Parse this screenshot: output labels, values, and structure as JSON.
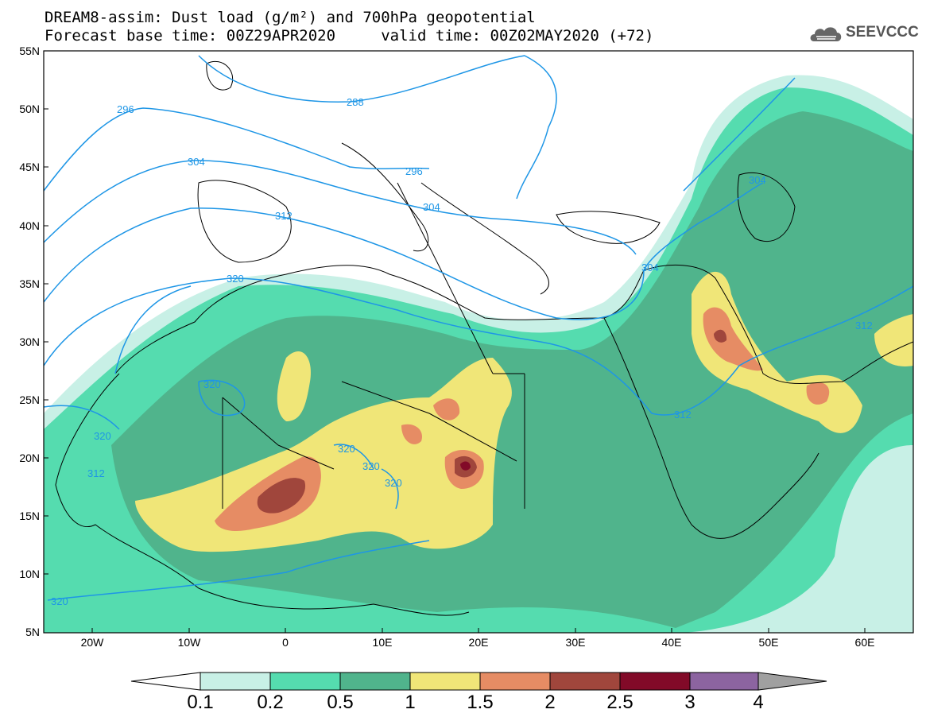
{
  "title": {
    "line1": "DREAM8-assim: Dust load (g/m²) and 700hPa geopotential",
    "line2": "Forecast base time: 00Z29APR2020     valid time: 00Z02MAY2020 (+72)"
  },
  "logo": {
    "name": "cloud-logo-icon",
    "text": "SEEVCCC"
  },
  "axes": {
    "lat_labels": [
      "55N",
      "50N",
      "45N",
      "40N",
      "35N",
      "30N",
      "25N",
      "20N",
      "15N",
      "10N",
      "5N"
    ],
    "lon_labels": [
      "20W",
      "10W",
      "0",
      "10E",
      "20E",
      "30E",
      "40E",
      "50E",
      "60E"
    ],
    "lat_range": [
      5,
      55
    ],
    "lon_range": [
      -25,
      65
    ]
  },
  "colorbar": {
    "labels": [
      "0.1",
      "0.2",
      "0.5",
      "1",
      "1.5",
      "2",
      "2.5",
      "3",
      "4"
    ],
    "colors": [
      "#ffffff",
      "#c8f0e6",
      "#55dcaf",
      "#50b48c",
      "#f0e678",
      "#e68c64",
      "#a0463c",
      "#820a28",
      "#8c64a0",
      "#a0a0a0"
    ]
  },
  "contours": {
    "labels": [
      "288",
      "296",
      "296",
      "304",
      "304",
      "304",
      "304",
      "312",
      "312",
      "312",
      "312",
      "320",
      "320",
      "320",
      "320",
      "320",
      "320",
      "320"
    ]
  }
}
